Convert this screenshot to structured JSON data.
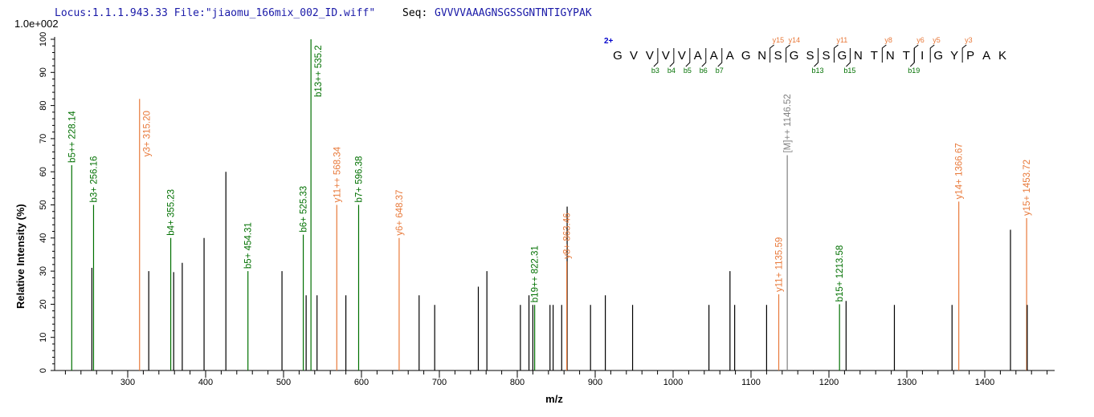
{
  "header": {
    "locus": "Locus:1.1.1.943.33 File:\"jiaomu_166mix_002_ID.wiff\"",
    "seq_label": "Seq:",
    "seq_value": "GVVVVAAAGNSGSSGNTNTIGYPAK"
  },
  "colors": {
    "b_ion": "#007000",
    "y_ion": "#e8793a",
    "precursor": "#808080",
    "unmatched": "#000000",
    "header_text": "#1a1aa8",
    "charge": "#0000cc"
  },
  "peptide": {
    "charge": "2+",
    "residues": [
      "G",
      "V",
      "V",
      "V",
      "V",
      "A",
      "A",
      "A",
      "G",
      "N",
      "S",
      "G",
      "S",
      "S",
      "G",
      "N",
      "T",
      "N",
      "T",
      "I",
      "G",
      "Y",
      "P",
      "A",
      "K"
    ],
    "b_ions": [
      {
        "label": "b3",
        "after": 3
      },
      {
        "label": "b4",
        "after": 4
      },
      {
        "label": "b5",
        "after": 5
      },
      {
        "label": "b6",
        "after": 6
      },
      {
        "label": "b7",
        "after": 7
      },
      {
        "label": "b13",
        "after": 13
      },
      {
        "label": "b15",
        "after": 15
      },
      {
        "label": "b19",
        "after": 19
      }
    ],
    "y_ions": [
      {
        "label": "y15",
        "after": 10
      },
      {
        "label": "y14",
        "after": 11
      },
      {
        "label": "y11",
        "after": 14
      },
      {
        "label": "y8",
        "after": 17
      },
      {
        "label": "y6",
        "after": 19
      },
      {
        "label": "y5",
        "after": 20
      },
      {
        "label": "y3",
        "after": 22
      }
    ]
  },
  "chart_data": {
    "type": "bar",
    "title": "",
    "scale_label": "1.0e+002",
    "xlabel": "m/z",
    "ylabel": "Relative   Intensity (%)",
    "xlim": [
      205,
      1490
    ],
    "ylim": [
      0,
      100
    ],
    "x_ticks": [
      300,
      400,
      500,
      600,
      700,
      800,
      900,
      1000,
      1100,
      1200,
      1300,
      1400
    ],
    "y_ticks": [
      0,
      10,
      20,
      30,
      40,
      50,
      60,
      70,
      80,
      90,
      100
    ],
    "grid": false,
    "peaks": [
      {
        "mz": 228.14,
        "intensity": 62,
        "type": "b",
        "label": "b5++ 228.14"
      },
      {
        "mz": 254,
        "intensity": 31,
        "type": "none",
        "label": ""
      },
      {
        "mz": 256.16,
        "intensity": 50,
        "type": "b",
        "label": "b3+ 256.16"
      },
      {
        "mz": 315.2,
        "intensity": 82,
        "type": "y",
        "label": "y3+ 315.20"
      },
      {
        "mz": 327,
        "intensity": 30,
        "type": "none",
        "label": ""
      },
      {
        "mz": 355.23,
        "intensity": 40,
        "type": "b",
        "label": "b4+ 355.23"
      },
      {
        "mz": 359,
        "intensity": 29.7,
        "type": "none",
        "label": ""
      },
      {
        "mz": 370,
        "intensity": 32.5,
        "type": "none",
        "label": ""
      },
      {
        "mz": 398,
        "intensity": 40,
        "type": "none",
        "label": ""
      },
      {
        "mz": 426,
        "intensity": 60,
        "type": "none",
        "label": ""
      },
      {
        "mz": 454.31,
        "intensity": 30,
        "type": "b",
        "label": "b5+ 454.31"
      },
      {
        "mz": 498,
        "intensity": 30,
        "type": "none",
        "label": ""
      },
      {
        "mz": 525.33,
        "intensity": 41,
        "type": "b",
        "label": "b6+ 525.33"
      },
      {
        "mz": 529,
        "intensity": 22.7,
        "type": "none",
        "label": ""
      },
      {
        "mz": 535.2,
        "intensity": 100,
        "type": "b",
        "label": "b13++ 535.2"
      },
      {
        "mz": 543,
        "intensity": 22.7,
        "type": "none",
        "label": ""
      },
      {
        "mz": 568.34,
        "intensity": 50,
        "type": "y",
        "label": "y11++ 568.34"
      },
      {
        "mz": 580,
        "intensity": 22.7,
        "type": "none",
        "label": ""
      },
      {
        "mz": 596.38,
        "intensity": 50,
        "type": "b",
        "label": "b7+ 596.38"
      },
      {
        "mz": 648.37,
        "intensity": 40,
        "type": "y",
        "label": "y6+ 648.37"
      },
      {
        "mz": 674,
        "intensity": 22.7,
        "type": "none",
        "label": ""
      },
      {
        "mz": 694,
        "intensity": 19.8,
        "type": "none",
        "label": ""
      },
      {
        "mz": 750,
        "intensity": 25.3,
        "type": "none",
        "label": ""
      },
      {
        "mz": 761,
        "intensity": 30,
        "type": "none",
        "label": ""
      },
      {
        "mz": 804,
        "intensity": 19.8,
        "type": "none",
        "label": ""
      },
      {
        "mz": 815,
        "intensity": 22.7,
        "type": "none",
        "label": ""
      },
      {
        "mz": 820,
        "intensity": 19.8,
        "type": "none",
        "label": ""
      },
      {
        "mz": 822.31,
        "intensity": 19.8,
        "type": "b",
        "label": "b19++ 822.31"
      },
      {
        "mz": 842,
        "intensity": 19.8,
        "type": "none",
        "label": ""
      },
      {
        "mz": 846,
        "intensity": 19.8,
        "type": "none",
        "label": ""
      },
      {
        "mz": 857,
        "intensity": 19.8,
        "type": "none",
        "label": ""
      },
      {
        "mz": 864,
        "intensity": 49.5,
        "type": "none",
        "label": ""
      },
      {
        "mz": 863.46,
        "intensity": 33,
        "type": "y",
        "label": "y8+ 863.46"
      },
      {
        "mz": 894,
        "intensity": 19.8,
        "type": "none",
        "label": ""
      },
      {
        "mz": 913,
        "intensity": 22.7,
        "type": "none",
        "label": ""
      },
      {
        "mz": 948,
        "intensity": 19.8,
        "type": "none",
        "label": ""
      },
      {
        "mz": 1046,
        "intensity": 19.8,
        "type": "none",
        "label": ""
      },
      {
        "mz": 1073,
        "intensity": 30,
        "type": "none",
        "label": ""
      },
      {
        "mz": 1079,
        "intensity": 19.8,
        "type": "none",
        "label": ""
      },
      {
        "mz": 1120,
        "intensity": 19.8,
        "type": "none",
        "label": ""
      },
      {
        "mz": 1135.59,
        "intensity": 23,
        "type": "y",
        "label": "y11+ 1135.59"
      },
      {
        "mz": 1146.52,
        "intensity": 65,
        "type": "M",
        "label": "[M]++ 1146.52"
      },
      {
        "mz": 1213.58,
        "intensity": 20,
        "type": "b",
        "label": "b15+ 1213.58"
      },
      {
        "mz": 1222,
        "intensity": 21,
        "type": "none",
        "label": ""
      },
      {
        "mz": 1284,
        "intensity": 19.8,
        "type": "none",
        "label": ""
      },
      {
        "mz": 1358,
        "intensity": 19.8,
        "type": "none",
        "label": ""
      },
      {
        "mz": 1366.67,
        "intensity": 51,
        "type": "y",
        "label": "y14+ 1366.67"
      },
      {
        "mz": 1433,
        "intensity": 42.5,
        "type": "none",
        "label": ""
      },
      {
        "mz": 1453.72,
        "intensity": 46,
        "type": "y",
        "label": "y15+ 1453.72"
      },
      {
        "mz": 1454.5,
        "intensity": 19.8,
        "type": "none",
        "label": ""
      }
    ]
  }
}
